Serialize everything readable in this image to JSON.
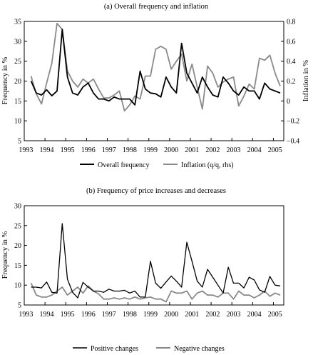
{
  "colors": {
    "dark": "#000000",
    "light": "#8a8a8a"
  },
  "chart_data": [
    {
      "type": "line",
      "title": "(a) Overall frequency and inflation",
      "ylabel": "Frequency in %",
      "ylabel_right": "Inflation in %",
      "ylim": [
        5,
        35
      ],
      "ylim_right": [
        -0.4,
        0.8
      ],
      "yticks": [
        "5",
        "10",
        "15",
        "20",
        "25",
        "30",
        "35"
      ],
      "yticks_right": [
        "−0.4",
        "−0.2",
        "0",
        "0.2",
        "0.4",
        "0.6",
        "0.8"
      ],
      "xlim": [
        1993.0,
        2005.5
      ],
      "xticks": [
        "1993",
        "1994",
        "1995",
        "1996",
        "1997",
        "1998",
        "1999",
        "2000",
        "2001",
        "2002",
        "2003",
        "2004",
        "2005"
      ],
      "grid": false,
      "legend_position": "bottom",
      "x": [
        1993.33,
        1993.58,
        1993.83,
        1994.08,
        1994.33,
        1994.58,
        1994.83,
        1995.08,
        1995.33,
        1995.58,
        1995.83,
        1996.08,
        1996.33,
        1996.58,
        1996.83,
        1997.08,
        1997.33,
        1997.58,
        1997.83,
        1998.08,
        1998.33,
        1998.58,
        1998.83,
        1999.08,
        1999.33,
        1999.58,
        1999.83,
        2000.08,
        2000.33,
        2000.58,
        2000.83,
        2001.08,
        2001.33,
        2001.58,
        2001.83,
        2002.08,
        2002.33,
        2002.58,
        2002.83,
        2003.08,
        2003.33,
        2003.58,
        2003.83,
        2004.08,
        2004.33,
        2004.58,
        2004.83,
        2005.08,
        2005.33
      ],
      "series": [
        {
          "name": "Overall frequency",
          "axis": "left",
          "color": "dark",
          "values": [
            20,
            17,
            16.5,
            17.8,
            16.3,
            17.5,
            33,
            21,
            17,
            16.5,
            18.5,
            19.5,
            17,
            15.5,
            15.5,
            15,
            16,
            15.5,
            15.5,
            15.5,
            14,
            22.5,
            18,
            17,
            16.8,
            16,
            21,
            18.5,
            17,
            29.5,
            22,
            19.5,
            17,
            21,
            18.5,
            16.5,
            16,
            21,
            19.5,
            17.5,
            16.5,
            18.5,
            17.5,
            17.5,
            15.5,
            19.5,
            18,
            17.5,
            17
          ]
        },
        {
          "name": "Inflation (q/q, rhs)",
          "axis": "right",
          "color": "light",
          "values": [
            0.25,
            0.07,
            -0.03,
            0.18,
            0.38,
            0.78,
            0.72,
            0.3,
            0.2,
            0.14,
            0.22,
            0.18,
            0.22,
            0.12,
            0.03,
            0.03,
            0.06,
            0.1,
            -0.1,
            -0.04,
            0.05,
            0.02,
            0.25,
            0.25,
            0.52,
            0.55,
            0.52,
            0.32,
            0.4,
            0.47,
            0.2,
            0.37,
            0.14,
            -0.08,
            0.35,
            0.28,
            0.14,
            0.19,
            0.22,
            0.24,
            -0.05,
            0.05,
            0.17,
            0.12,
            0.43,
            0.41,
            0.46,
            0.28,
            0.15
          ]
        }
      ]
    },
    {
      "type": "line",
      "title": "(b) Frequency of price increases and decreases",
      "ylabel": "Frequency in %",
      "ylim": [
        5,
        30
      ],
      "yticks": [
        "5",
        "10",
        "15",
        "20",
        "25",
        "30"
      ],
      "xlim": [
        1993.0,
        2005.5
      ],
      "xticks": [
        "1993",
        "1994",
        "1995",
        "1996",
        "1997",
        "1998",
        "1999",
        "2000",
        "2001",
        "2002",
        "2003",
        "2004",
        "2005"
      ],
      "grid": false,
      "legend_position": "bottom",
      "x": [
        1993.33,
        1993.58,
        1993.83,
        1994.08,
        1994.33,
        1994.58,
        1994.83,
        1995.08,
        1995.33,
        1995.58,
        1995.83,
        1996.08,
        1996.33,
        1996.58,
        1996.83,
        1997.08,
        1997.33,
        1997.58,
        1997.83,
        1998.08,
        1998.33,
        1998.58,
        1998.83,
        1999.08,
        1999.33,
        1999.58,
        1999.83,
        2000.08,
        2000.33,
        2000.58,
        2000.83,
        2001.08,
        2001.33,
        2001.58,
        2001.83,
        2002.08,
        2002.33,
        2002.58,
        2002.83,
        2003.08,
        2003.33,
        2003.58,
        2003.83,
        2004.08,
        2004.33,
        2004.58,
        2004.83,
        2005.08,
        2005.33
      ],
      "series": [
        {
          "name": "Positive changes",
          "color": "dark",
          "values": [
            9.5,
            9.5,
            9.3,
            10.8,
            8.2,
            8,
            25.5,
            11.5,
            8.2,
            6.8,
            10.7,
            9.5,
            8.5,
            8.5,
            8.2,
            9,
            8.5,
            8.5,
            8.7,
            8,
            8.5,
            7,
            7,
            16,
            10.5,
            9.2,
            10.8,
            12.3,
            11,
            9.5,
            20.8,
            16,
            11,
            9.5,
            14,
            12,
            10,
            8,
            14.5,
            10.5,
            10.5,
            9.3,
            12,
            11.3,
            8.8,
            8.2,
            12.2,
            10,
            9.8
          ]
        },
        {
          "name": "Negative changes",
          "color": "light",
          "values": [
            10.5,
            7.5,
            7,
            7,
            7.5,
            8.5,
            9.5,
            7.5,
            8.5,
            9.5,
            8,
            9.8,
            8.5,
            7.8,
            6.5,
            6.5,
            6.8,
            6.5,
            6.8,
            6.5,
            7,
            6.5,
            6.8,
            7,
            6.5,
            6.5,
            5.8,
            8.5,
            8,
            8,
            8.5,
            6.5,
            8,
            8.5,
            7.5,
            7.5,
            7,
            8,
            8,
            6.5,
            8.5,
            7.5,
            7.5,
            6.8,
            7.5,
            8.5,
            7.2,
            8,
            7.5
          ]
        }
      ]
    }
  ]
}
